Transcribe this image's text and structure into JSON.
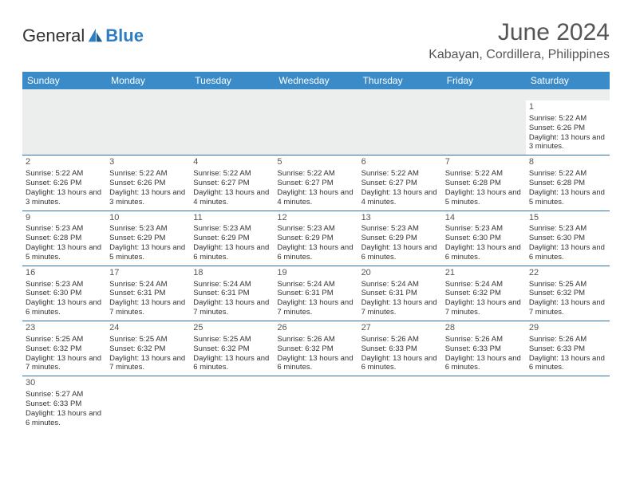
{
  "logo": {
    "text1": "General",
    "text2": "Blue"
  },
  "title": "June 2024",
  "location": "Kabayan, Cordillera, Philippines",
  "dayHeaders": [
    "Sunday",
    "Monday",
    "Tuesday",
    "Wednesday",
    "Thursday",
    "Friday",
    "Saturday"
  ],
  "colors": {
    "headerBg": "#3b8bc8",
    "headerText": "#ffffff",
    "rowBorder": "#2e6fa8",
    "blankBg": "#eceded",
    "logoBlue": "#2f7ec2",
    "textColor": "#333333",
    "titleColor": "#555555"
  },
  "typography": {
    "title_fontsize": 30,
    "location_fontsize": 16,
    "header_fontsize": 12,
    "cell_fontsize": 9.5,
    "daynum_fontsize": 11
  },
  "weeks": [
    [
      null,
      null,
      null,
      null,
      null,
      null,
      {
        "n": "1",
        "sr": "Sunrise: 5:22 AM",
        "ss": "Sunset: 6:26 PM",
        "dl": "Daylight: 13 hours and 3 minutes."
      }
    ],
    [
      {
        "n": "2",
        "sr": "Sunrise: 5:22 AM",
        "ss": "Sunset: 6:26 PM",
        "dl": "Daylight: 13 hours and 3 minutes."
      },
      {
        "n": "3",
        "sr": "Sunrise: 5:22 AM",
        "ss": "Sunset: 6:26 PM",
        "dl": "Daylight: 13 hours and 3 minutes."
      },
      {
        "n": "4",
        "sr": "Sunrise: 5:22 AM",
        "ss": "Sunset: 6:27 PM",
        "dl": "Daylight: 13 hours and 4 minutes."
      },
      {
        "n": "5",
        "sr": "Sunrise: 5:22 AM",
        "ss": "Sunset: 6:27 PM",
        "dl": "Daylight: 13 hours and 4 minutes."
      },
      {
        "n": "6",
        "sr": "Sunrise: 5:22 AM",
        "ss": "Sunset: 6:27 PM",
        "dl": "Daylight: 13 hours and 4 minutes."
      },
      {
        "n": "7",
        "sr": "Sunrise: 5:22 AM",
        "ss": "Sunset: 6:28 PM",
        "dl": "Daylight: 13 hours and 5 minutes."
      },
      {
        "n": "8",
        "sr": "Sunrise: 5:22 AM",
        "ss": "Sunset: 6:28 PM",
        "dl": "Daylight: 13 hours and 5 minutes."
      }
    ],
    [
      {
        "n": "9",
        "sr": "Sunrise: 5:23 AM",
        "ss": "Sunset: 6:28 PM",
        "dl": "Daylight: 13 hours and 5 minutes."
      },
      {
        "n": "10",
        "sr": "Sunrise: 5:23 AM",
        "ss": "Sunset: 6:29 PM",
        "dl": "Daylight: 13 hours and 5 minutes."
      },
      {
        "n": "11",
        "sr": "Sunrise: 5:23 AM",
        "ss": "Sunset: 6:29 PM",
        "dl": "Daylight: 13 hours and 6 minutes."
      },
      {
        "n": "12",
        "sr": "Sunrise: 5:23 AM",
        "ss": "Sunset: 6:29 PM",
        "dl": "Daylight: 13 hours and 6 minutes."
      },
      {
        "n": "13",
        "sr": "Sunrise: 5:23 AM",
        "ss": "Sunset: 6:29 PM",
        "dl": "Daylight: 13 hours and 6 minutes."
      },
      {
        "n": "14",
        "sr": "Sunrise: 5:23 AM",
        "ss": "Sunset: 6:30 PM",
        "dl": "Daylight: 13 hours and 6 minutes."
      },
      {
        "n": "15",
        "sr": "Sunrise: 5:23 AM",
        "ss": "Sunset: 6:30 PM",
        "dl": "Daylight: 13 hours and 6 minutes."
      }
    ],
    [
      {
        "n": "16",
        "sr": "Sunrise: 5:23 AM",
        "ss": "Sunset: 6:30 PM",
        "dl": "Daylight: 13 hours and 6 minutes."
      },
      {
        "n": "17",
        "sr": "Sunrise: 5:24 AM",
        "ss": "Sunset: 6:31 PM",
        "dl": "Daylight: 13 hours and 7 minutes."
      },
      {
        "n": "18",
        "sr": "Sunrise: 5:24 AM",
        "ss": "Sunset: 6:31 PM",
        "dl": "Daylight: 13 hours and 7 minutes."
      },
      {
        "n": "19",
        "sr": "Sunrise: 5:24 AM",
        "ss": "Sunset: 6:31 PM",
        "dl": "Daylight: 13 hours and 7 minutes."
      },
      {
        "n": "20",
        "sr": "Sunrise: 5:24 AM",
        "ss": "Sunset: 6:31 PM",
        "dl": "Daylight: 13 hours and 7 minutes."
      },
      {
        "n": "21",
        "sr": "Sunrise: 5:24 AM",
        "ss": "Sunset: 6:32 PM",
        "dl": "Daylight: 13 hours and 7 minutes."
      },
      {
        "n": "22",
        "sr": "Sunrise: 5:25 AM",
        "ss": "Sunset: 6:32 PM",
        "dl": "Daylight: 13 hours and 7 minutes."
      }
    ],
    [
      {
        "n": "23",
        "sr": "Sunrise: 5:25 AM",
        "ss": "Sunset: 6:32 PM",
        "dl": "Daylight: 13 hours and 7 minutes."
      },
      {
        "n": "24",
        "sr": "Sunrise: 5:25 AM",
        "ss": "Sunset: 6:32 PM",
        "dl": "Daylight: 13 hours and 7 minutes."
      },
      {
        "n": "25",
        "sr": "Sunrise: 5:25 AM",
        "ss": "Sunset: 6:32 PM",
        "dl": "Daylight: 13 hours and 6 minutes."
      },
      {
        "n": "26",
        "sr": "Sunrise: 5:26 AM",
        "ss": "Sunset: 6:32 PM",
        "dl": "Daylight: 13 hours and 6 minutes."
      },
      {
        "n": "27",
        "sr": "Sunrise: 5:26 AM",
        "ss": "Sunset: 6:33 PM",
        "dl": "Daylight: 13 hours and 6 minutes."
      },
      {
        "n": "28",
        "sr": "Sunrise: 5:26 AM",
        "ss": "Sunset: 6:33 PM",
        "dl": "Daylight: 13 hours and 6 minutes."
      },
      {
        "n": "29",
        "sr": "Sunrise: 5:26 AM",
        "ss": "Sunset: 6:33 PM",
        "dl": "Daylight: 13 hours and 6 minutes."
      }
    ],
    [
      {
        "n": "30",
        "sr": "Sunrise: 5:27 AM",
        "ss": "Sunset: 6:33 PM",
        "dl": "Daylight: 13 hours and 6 minutes."
      },
      null,
      null,
      null,
      null,
      null,
      null
    ]
  ]
}
